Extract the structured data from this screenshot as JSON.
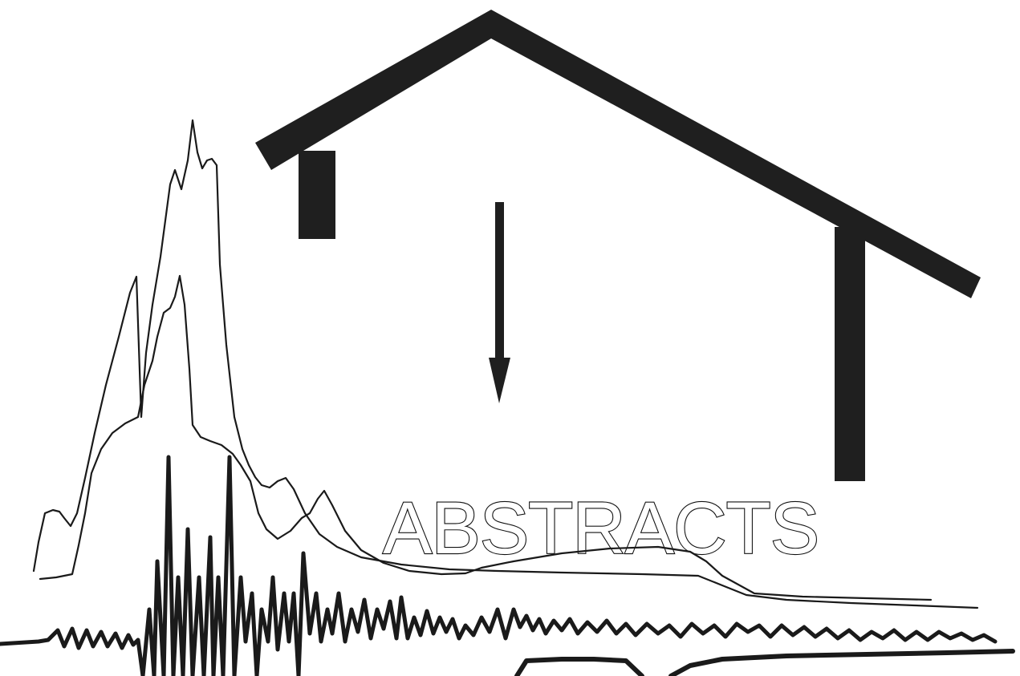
{
  "title": "ABSTRACTS",
  "ink_color": "#1a1a1a",
  "paper_color": "#ffffff",
  "icons": [
    "house-roof-icon",
    "down-arrow-icon",
    "seismogram-traces"
  ]
}
